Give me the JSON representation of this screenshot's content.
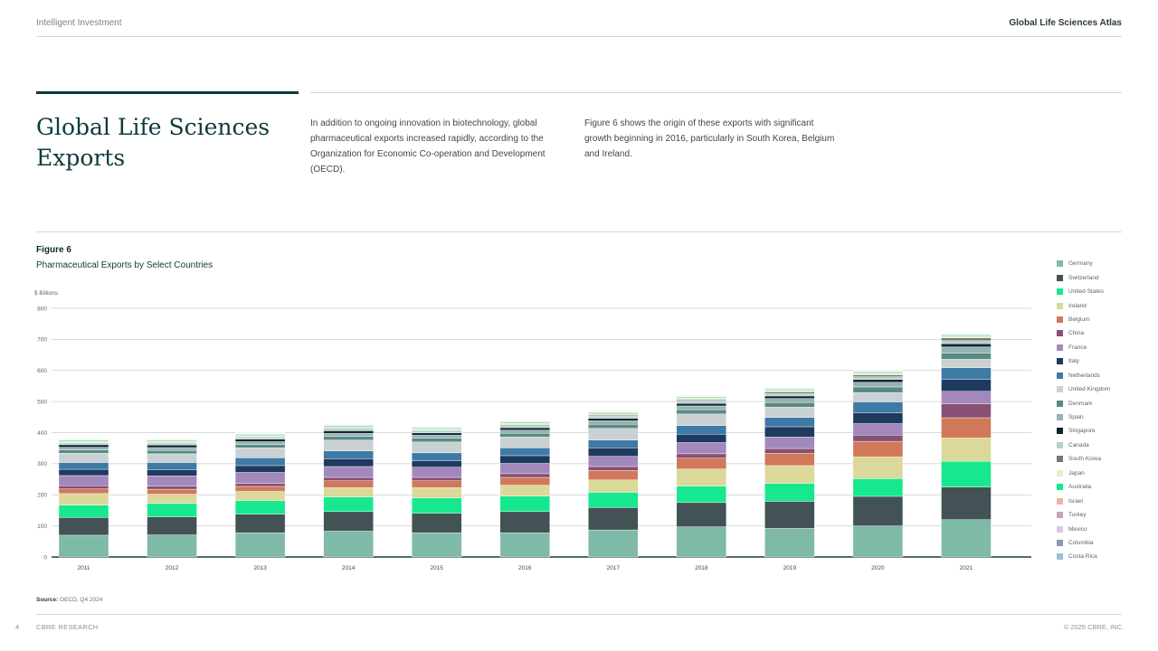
{
  "header": {
    "left": "Intelligent Investment",
    "right": "Global Life Sciences Atlas"
  },
  "page_title": "Global Life Sciences Exports",
  "intro": {
    "col1": "In addition to ongoing innovation in biotechnology, global pharmaceutical exports increased rapidly, according to the Organization for Economic Co-operation and Development (OECD).",
    "col2": "Figure 6 shows the origin of these exports with significant growth beginning in 2016, particularly in South Korea, Belgium and Ireland."
  },
  "figure": {
    "label": "Figure 6",
    "title": "Pharmaceutical Exports by Select Countries"
  },
  "source": {
    "label": "Source:",
    "text": "OECD, Q4 2024"
  },
  "footer": {
    "page_number": "4",
    "left": "CBRE RESEARCH",
    "right": "© 2025 CBRE, INC"
  },
  "chart_data": {
    "type": "bar",
    "stacked": true,
    "title": "Pharmaceutical Exports by Select Countries",
    "ylabel": "$ Billions",
    "xlabel": "",
    "ylim": [
      0,
      800
    ],
    "yticks": [
      0,
      100,
      200,
      300,
      400,
      500,
      600,
      700,
      800
    ],
    "categories": [
      "2011",
      "2012",
      "2013",
      "2014",
      "2015",
      "2016",
      "2017",
      "2018",
      "2019",
      "2020",
      "2021"
    ],
    "legend_position": "right",
    "series": [
      {
        "name": "Germany",
        "color": "#7fbaa9",
        "values": [
          70,
          71,
          78,
          83,
          78,
          78,
          87,
          97,
          92,
          100,
          120
        ]
      },
      {
        "name": "Switzerland",
        "color": "#435254",
        "values": [
          57,
          58,
          60,
          63,
          63,
          68,
          72,
          78,
          87,
          95,
          105
        ]
      },
      {
        "name": "United States",
        "color": "#17e88f",
        "values": [
          40,
          43,
          43,
          47,
          49,
          50,
          49,
          53,
          58,
          57,
          83
        ]
      },
      {
        "name": "Ireland",
        "color": "#dbd99a",
        "values": [
          37,
          30,
          30,
          30,
          33,
          35,
          40,
          55,
          57,
          70,
          75
        ]
      },
      {
        "name": "Belgium",
        "color": "#d2785a",
        "values": [
          15,
          16,
          16,
          22,
          22,
          25,
          30,
          35,
          40,
          50,
          65
        ]
      },
      {
        "name": "China",
        "color": "#885073",
        "values": [
          10,
          10,
          10,
          11,
          11,
          12,
          13,
          14,
          15,
          20,
          45
        ]
      },
      {
        "name": "France",
        "color": "#a388bc",
        "values": [
          33,
          33,
          35,
          35,
          33,
          33,
          33,
          36,
          37,
          37,
          40
        ]
      },
      {
        "name": "Italy",
        "color": "#1f3a60",
        "values": [
          20,
          20,
          22,
          25,
          20,
          25,
          27,
          27,
          33,
          35,
          38
        ]
      },
      {
        "name": "Netherlands",
        "color": "#3e7aa6",
        "values": [
          22,
          23,
          25,
          25,
          26,
          25,
          25,
          28,
          30,
          35,
          38
        ]
      },
      {
        "name": "United Kingdom",
        "color": "#cad1d3",
        "values": [
          30,
          28,
          32,
          35,
          35,
          35,
          38,
          37,
          33,
          30,
          27
        ]
      },
      {
        "name": "Denmark",
        "color": "#5a8a86",
        "values": [
          10,
          11,
          11,
          12,
          12,
          12,
          13,
          14,
          15,
          18,
          20
        ]
      },
      {
        "name": "Spain",
        "color": "#96b5b2",
        "values": [
          9,
          9,
          9,
          10,
          10,
          10,
          11,
          12,
          13,
          15,
          20
        ]
      },
      {
        "name": "Singapore",
        "color": "#0d2234",
        "values": [
          8,
          8,
          8,
          8,
          7,
          8,
          8,
          8,
          8,
          9,
          10
        ]
      },
      {
        "name": "Canada",
        "color": "#b6d2c8",
        "values": [
          6,
          6,
          6,
          7,
          7,
          7,
          7,
          8,
          8,
          9,
          10
        ]
      },
      {
        "name": "South Korea",
        "color": "#767676",
        "values": [
          2,
          2,
          2,
          2,
          2,
          3,
          3,
          4,
          5,
          6,
          9
        ]
      },
      {
        "name": "Japan",
        "color": "#e9ebcc",
        "values": [
          4,
          4,
          4,
          4,
          4,
          4,
          5,
          5,
          6,
          6,
          6
        ]
      },
      {
        "name": "Australia",
        "color": "#17e88f",
        "values": [
          3,
          3,
          3,
          3,
          3,
          3,
          3,
          3,
          3,
          3,
          3
        ]
      },
      {
        "name": "Israel",
        "color": "#e4b8a4",
        "values": [
          2,
          2,
          2,
          2,
          2,
          2,
          2,
          2,
          2,
          2,
          2
        ]
      },
      {
        "name": "Turkey",
        "color": "#c3a3b9",
        "values": [
          1,
          1,
          1,
          1,
          1,
          1,
          1,
          1,
          1,
          1,
          2
        ]
      },
      {
        "name": "Mexico",
        "color": "#d7c8e2",
        "values": [
          1,
          1,
          1,
          1,
          1,
          1,
          1,
          1,
          1,
          1,
          1
        ]
      },
      {
        "name": "Columbia",
        "color": "#8c94b8",
        "values": [
          1,
          1,
          1,
          1,
          1,
          1,
          1,
          1,
          1,
          1,
          1
        ]
      },
      {
        "name": "Costa Rica",
        "color": "#9dbfd4",
        "values": [
          1,
          1,
          1,
          1,
          1,
          1,
          1,
          1,
          1,
          1,
          1
        ]
      }
    ]
  }
}
